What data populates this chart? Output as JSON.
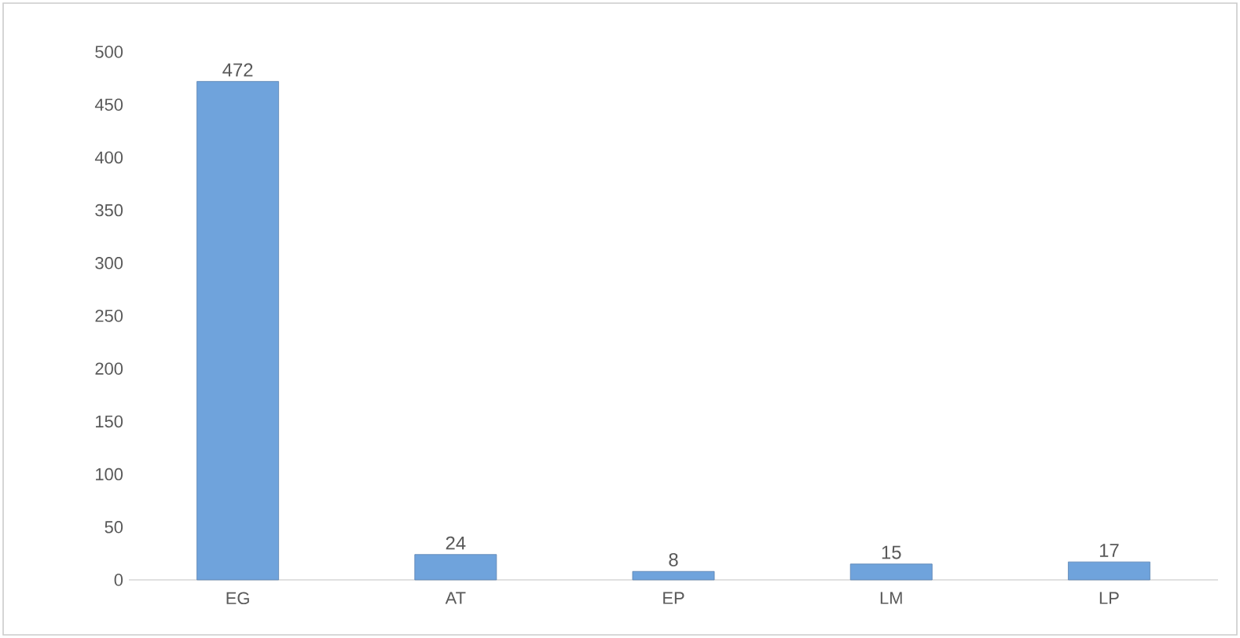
{
  "chart_data": {
    "type": "bar",
    "categories": [
      "EG",
      "AT",
      "EP",
      "LM",
      "LP"
    ],
    "values": [
      472,
      24,
      8,
      15,
      17
    ],
    "color": "#6fa3dc",
    "ylim": [
      0,
      500
    ],
    "yticks": [
      0,
      50,
      100,
      150,
      200,
      250,
      300,
      350,
      400,
      450,
      500
    ],
    "data_labels": true
  }
}
